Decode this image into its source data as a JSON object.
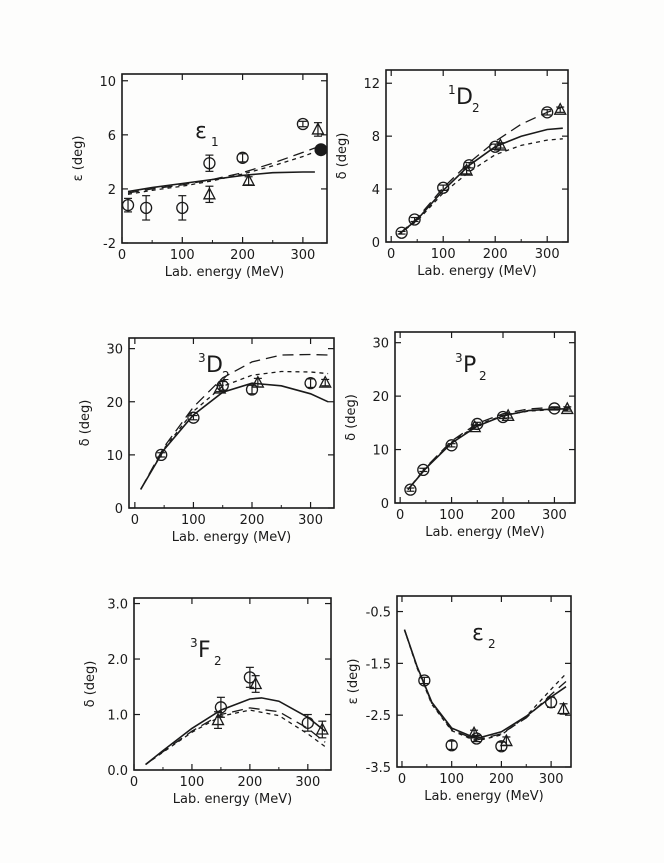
{
  "chart_data": [
    {
      "type": "line",
      "title": "ε",
      "title_sub": "1",
      "title_sup": "",
      "xlabel": "Lab. energy (MeV)",
      "ylabel": "ε (deg)",
      "xlim": [
        0,
        340
      ],
      "ylim": [
        -2,
        10.5
      ],
      "xticks": [
        0,
        100,
        200,
        300
      ],
      "yticks": [
        -2,
        2,
        6,
        10
      ],
      "xtick_labels": [
        "0",
        "100",
        "200",
        "300"
      ],
      "ytick_labels": [
        "-2",
        "2",
        "6",
        "10"
      ],
      "series": [
        {
          "name": "solid",
          "style": "solid",
          "x": [
            10,
            50,
            100,
            150,
            200,
            250,
            300,
            320
          ],
          "y": [
            1.8,
            2.1,
            2.4,
            2.7,
            3.0,
            3.2,
            3.25,
            3.25
          ]
        },
        {
          "name": "long-dashed",
          "style": "long-dash",
          "x": [
            10,
            50,
            100,
            150,
            200,
            250,
            300,
            330
          ],
          "y": [
            1.7,
            2.0,
            2.3,
            2.7,
            3.2,
            3.9,
            4.7,
            5.2
          ]
        },
        {
          "name": "short-dashed",
          "style": "short-dash",
          "x": [
            10,
            50,
            100,
            150,
            200,
            250,
            300,
            330
          ],
          "y": [
            1.6,
            1.9,
            2.2,
            2.6,
            3.1,
            3.7,
            4.4,
            4.9
          ]
        }
      ],
      "points": [
        {
          "marker": "circle",
          "x": 10,
          "y": 0.8,
          "err": 0.5
        },
        {
          "marker": "circle",
          "x": 40,
          "y": 0.6,
          "err": 0.9
        },
        {
          "marker": "circle",
          "x": 100,
          "y": 0.6,
          "err": 0.9
        },
        {
          "marker": "circle",
          "x": 145,
          "y": 3.9,
          "err": 0.6
        },
        {
          "marker": "circle",
          "x": 200,
          "y": 4.3,
          "err": 0.3
        },
        {
          "marker": "circle",
          "x": 300,
          "y": 6.8,
          "err": 0.2
        },
        {
          "marker": "triangle",
          "x": 145,
          "y": 1.6,
          "err": 0.6
        },
        {
          "marker": "triangle",
          "x": 210,
          "y": 2.6,
          "err": 0.3
        },
        {
          "marker": "triangle",
          "x": 325,
          "y": 6.4,
          "err": 0.5
        },
        {
          "marker": "filled-circle",
          "x": 330,
          "y": 4.9,
          "err": 0
        }
      ]
    },
    {
      "type": "line",
      "title": "D",
      "title_sub": "2",
      "title_sup": "1",
      "xlabel": "Lab. energy (MeV)",
      "ylabel": "δ (deg)",
      "xlim": [
        -10,
        340
      ],
      "ylim": [
        0,
        13
      ],
      "xticks": [
        0,
        100,
        200,
        300
      ],
      "yticks": [
        0,
        4,
        8,
        12
      ],
      "xtick_labels": [
        "0",
        "100",
        "200",
        "300"
      ],
      "ytick_labels": [
        "0",
        "4",
        "8",
        "12"
      ],
      "series": [
        {
          "name": "solid",
          "style": "solid",
          "x": [
            15,
            50,
            100,
            150,
            200,
            250,
            300,
            330
          ],
          "y": [
            0.6,
            1.7,
            3.9,
            5.8,
            7.2,
            8.0,
            8.5,
            8.6
          ]
        },
        {
          "name": "long-dashed",
          "style": "long-dash",
          "x": [
            15,
            50,
            100,
            150,
            200,
            250,
            300,
            330
          ],
          "y": [
            0.6,
            1.8,
            4.1,
            6.0,
            7.6,
            8.9,
            9.8,
            10.2
          ]
        },
        {
          "name": "short-dashed",
          "style": "short-dash",
          "x": [
            15,
            50,
            100,
            150,
            200,
            250,
            300,
            330
          ],
          "y": [
            0.6,
            1.6,
            3.7,
            5.3,
            6.6,
            7.3,
            7.7,
            7.8
          ]
        }
      ],
      "points": [
        {
          "marker": "circle",
          "x": 20,
          "y": 0.7,
          "err": 0.1
        },
        {
          "marker": "circle",
          "x": 45,
          "y": 1.7,
          "err": 0.15
        },
        {
          "marker": "circle",
          "x": 100,
          "y": 4.1,
          "err": 0.2
        },
        {
          "marker": "circle",
          "x": 150,
          "y": 5.8,
          "err": 0.2
        },
        {
          "marker": "circle",
          "x": 200,
          "y": 7.2,
          "err": 0.2
        },
        {
          "marker": "circle",
          "x": 300,
          "y": 9.8,
          "err": 0.2
        },
        {
          "marker": "triangle",
          "x": 145,
          "y": 5.4,
          "err": 0.25
        },
        {
          "marker": "triangle",
          "x": 210,
          "y": 7.3,
          "err": 0.2
        },
        {
          "marker": "triangle",
          "x": 325,
          "y": 10.0,
          "err": 0.2
        }
      ]
    },
    {
      "type": "line",
      "title": "D",
      "title_sub": "2",
      "title_sup": "3",
      "xlabel": "Lab. energy (MeV)",
      "ylabel": "δ (deg)",
      "xlim": [
        -10,
        340
      ],
      "ylim": [
        0,
        32
      ],
      "xticks": [
        0,
        100,
        200,
        300
      ],
      "yticks": [
        0,
        10,
        20,
        30
      ],
      "xtick_labels": [
        "0",
        "100",
        "200",
        "300"
      ],
      "ytick_labels": [
        "0",
        "10",
        "20",
        "30"
      ],
      "series": [
        {
          "name": "solid",
          "style": "solid",
          "x": [
            10,
            50,
            100,
            150,
            200,
            250,
            300,
            330
          ],
          "y": [
            3.5,
            11.0,
            17.5,
            21.8,
            23.5,
            23.0,
            21.5,
            20.0
          ]
        },
        {
          "name": "long-dashed",
          "style": "long-dash",
          "x": [
            10,
            50,
            100,
            150,
            200,
            250,
            300,
            330
          ],
          "y": [
            3.5,
            11.5,
            19.0,
            24.5,
            27.5,
            28.8,
            28.9,
            28.8
          ]
        },
        {
          "name": "short-dashed",
          "style": "short-dash",
          "x": [
            10,
            50,
            100,
            150,
            200,
            250,
            300,
            330
          ],
          "y": [
            3.5,
            11.2,
            18.2,
            22.9,
            25.0,
            25.7,
            25.6,
            25.3
          ]
        }
      ],
      "points": [
        {
          "marker": "circle",
          "x": 45,
          "y": 10.0,
          "err": 0.4
        },
        {
          "marker": "circle",
          "x": 100,
          "y": 17.0,
          "err": 0.4
        },
        {
          "marker": "circle",
          "x": 150,
          "y": 23.0,
          "err": 0.8
        },
        {
          "marker": "circle",
          "x": 200,
          "y": 22.3,
          "err": 0.8
        },
        {
          "marker": "circle",
          "x": 300,
          "y": 23.5,
          "err": 0.8
        },
        {
          "marker": "triangle",
          "x": 145,
          "y": 22.5,
          "err": 0.6
        },
        {
          "marker": "triangle",
          "x": 210,
          "y": 23.6,
          "err": 0.8
        },
        {
          "marker": "triangle",
          "x": 325,
          "y": 23.6,
          "err": 0.6
        }
      ]
    },
    {
      "type": "line",
      "title": "P",
      "title_sub": "2",
      "title_sup": "3",
      "xlabel": "Lab. energy (MeV)",
      "ylabel": "δ (deg)",
      "xlim": [
        -10,
        340
      ],
      "ylim": [
        0,
        32
      ],
      "xticks": [
        0,
        100,
        200,
        300
      ],
      "yticks": [
        0,
        10,
        20,
        30
      ],
      "xtick_labels": [
        "0",
        "100",
        "200",
        "300"
      ],
      "ytick_labels": [
        "0",
        "10",
        "20",
        "30"
      ],
      "series": [
        {
          "name": "solid",
          "style": "solid",
          "x": [
            15,
            50,
            100,
            150,
            200,
            250,
            300,
            330
          ],
          "y": [
            2.5,
            6.5,
            11.2,
            14.4,
            16.3,
            17.3,
            17.6,
            17.6
          ]
        },
        {
          "name": "long-dashed",
          "style": "long-dash",
          "x": [
            15,
            50,
            100,
            150,
            200,
            250,
            300,
            330
          ],
          "y": [
            2.5,
            6.7,
            11.6,
            14.9,
            16.7,
            17.6,
            17.9,
            17.9
          ]
        },
        {
          "name": "short-dashed",
          "style": "short-dash",
          "x": [
            15,
            50,
            100,
            150,
            200,
            250,
            300,
            330
          ],
          "y": [
            2.5,
            6.6,
            11.4,
            14.6,
            16.4,
            17.2,
            17.5,
            17.4
          ]
        }
      ],
      "points": [
        {
          "marker": "circle",
          "x": 20,
          "y": 2.5,
          "err": 0.3
        },
        {
          "marker": "circle",
          "x": 45,
          "y": 6.2,
          "err": 0.3
        },
        {
          "marker": "circle",
          "x": 100,
          "y": 10.8,
          "err": 0.3
        },
        {
          "marker": "circle",
          "x": 150,
          "y": 14.8,
          "err": 0.3
        },
        {
          "marker": "circle",
          "x": 200,
          "y": 16.1,
          "err": 0.3
        },
        {
          "marker": "circle",
          "x": 300,
          "y": 17.7,
          "err": 0.3
        },
        {
          "marker": "triangle",
          "x": 145,
          "y": 14.2,
          "err": 0.4
        },
        {
          "marker": "triangle",
          "x": 210,
          "y": 16.3,
          "err": 0.4
        },
        {
          "marker": "triangle",
          "x": 325,
          "y": 17.6,
          "err": 0.4
        }
      ]
    },
    {
      "type": "line",
      "title": "F",
      "title_sub": "2",
      "title_sup": "3",
      "xlabel": "Lab. energy (MeV)",
      "ylabel": "δ (deg)",
      "xlim": [
        0,
        340
      ],
      "ylim": [
        0,
        3.1
      ],
      "xticks": [
        0,
        100,
        200,
        300
      ],
      "yticks": [
        0.0,
        1.0,
        2.0,
        3.0
      ],
      "xtick_labels": [
        "0",
        "100",
        "200",
        "300"
      ],
      "ytick_labels": [
        "0.0",
        "1.0",
        "2.0",
        "3.0"
      ],
      "series": [
        {
          "name": "solid",
          "style": "solid",
          "x": [
            20,
            50,
            100,
            150,
            200,
            220,
            250,
            300,
            330
          ],
          "y": [
            0.1,
            0.35,
            0.75,
            1.08,
            1.28,
            1.3,
            1.24,
            0.95,
            0.7
          ]
        },
        {
          "name": "long-dashed",
          "style": "long-dash",
          "x": [
            20,
            50,
            100,
            150,
            200,
            250,
            300,
            330
          ],
          "y": [
            0.1,
            0.33,
            0.7,
            1.0,
            1.12,
            1.05,
            0.75,
            0.5
          ]
        },
        {
          "name": "short-dashed",
          "style": "short-dash",
          "x": [
            20,
            50,
            100,
            150,
            200,
            250,
            300,
            330
          ],
          "y": [
            0.1,
            0.32,
            0.68,
            0.97,
            1.08,
            0.98,
            0.65,
            0.42
          ]
        }
      ],
      "points": [
        {
          "marker": "circle",
          "x": 150,
          "y": 1.13,
          "err": 0.18
        },
        {
          "marker": "circle",
          "x": 200,
          "y": 1.67,
          "err": 0.18
        },
        {
          "marker": "circle",
          "x": 300,
          "y": 0.85,
          "err": 0.15
        },
        {
          "marker": "triangle",
          "x": 145,
          "y": 0.9,
          "err": 0.15
        },
        {
          "marker": "triangle",
          "x": 210,
          "y": 1.55,
          "err": 0.15
        },
        {
          "marker": "triangle",
          "x": 325,
          "y": 0.73,
          "err": 0.15
        }
      ]
    },
    {
      "type": "line",
      "title": "ε",
      "title_sub": "2",
      "title_sup": "",
      "xlabel": "Lab. energy (MeV)",
      "ylabel": "ε (deg)",
      "xlim": [
        -10,
        340
      ],
      "ylim": [
        -3.5,
        -0.2
      ],
      "xticks": [
        0,
        100,
        200,
        300
      ],
      "yticks": [
        -3.5,
        -2.5,
        -1.5,
        -0.5
      ],
      "xtick_labels": [
        "0",
        "100",
        "200",
        "300"
      ],
      "ytick_labels": [
        "-3.5",
        "-2.5",
        "-1.5",
        "-0.5"
      ],
      "series": [
        {
          "name": "solid",
          "style": "solid",
          "x": [
            5,
            30,
            60,
            100,
            150,
            200,
            250,
            300,
            330
          ],
          "y": [
            -0.85,
            -1.55,
            -2.25,
            -2.75,
            -2.95,
            -2.82,
            -2.52,
            -2.15,
            -1.95
          ]
        },
        {
          "name": "long-dashed",
          "style": "long-dash",
          "x": [
            5,
            30,
            60,
            100,
            150,
            200,
            250,
            300,
            330
          ],
          "y": [
            -0.85,
            -1.56,
            -2.27,
            -2.78,
            -2.98,
            -2.86,
            -2.55,
            -2.1,
            -1.85
          ]
        },
        {
          "name": "short-dashed",
          "style": "short-dash",
          "x": [
            5,
            30,
            60,
            100,
            150,
            200,
            250,
            300,
            330
          ],
          "y": [
            -0.85,
            -1.58,
            -2.29,
            -2.8,
            -3.0,
            -2.88,
            -2.52,
            -2.0,
            -1.7
          ]
        }
      ],
      "points": [
        {
          "marker": "circle",
          "x": 45,
          "y": -1.83,
          "err": 0.06
        },
        {
          "marker": "circle",
          "x": 100,
          "y": -3.08,
          "err": 0.08
        },
        {
          "marker": "circle",
          "x": 150,
          "y": -2.95,
          "err": 0.06
        },
        {
          "marker": "circle",
          "x": 200,
          "y": -3.1,
          "err": 0.08
        },
        {
          "marker": "circle",
          "x": 300,
          "y": -2.25,
          "err": 0.1
        },
        {
          "marker": "triangle",
          "x": 145,
          "y": -2.85,
          "err": 0.06
        },
        {
          "marker": "triangle",
          "x": 210,
          "y": -3.0,
          "err": 0.08
        },
        {
          "marker": "triangle",
          "x": 325,
          "y": -2.38,
          "err": 0.1
        }
      ]
    }
  ]
}
